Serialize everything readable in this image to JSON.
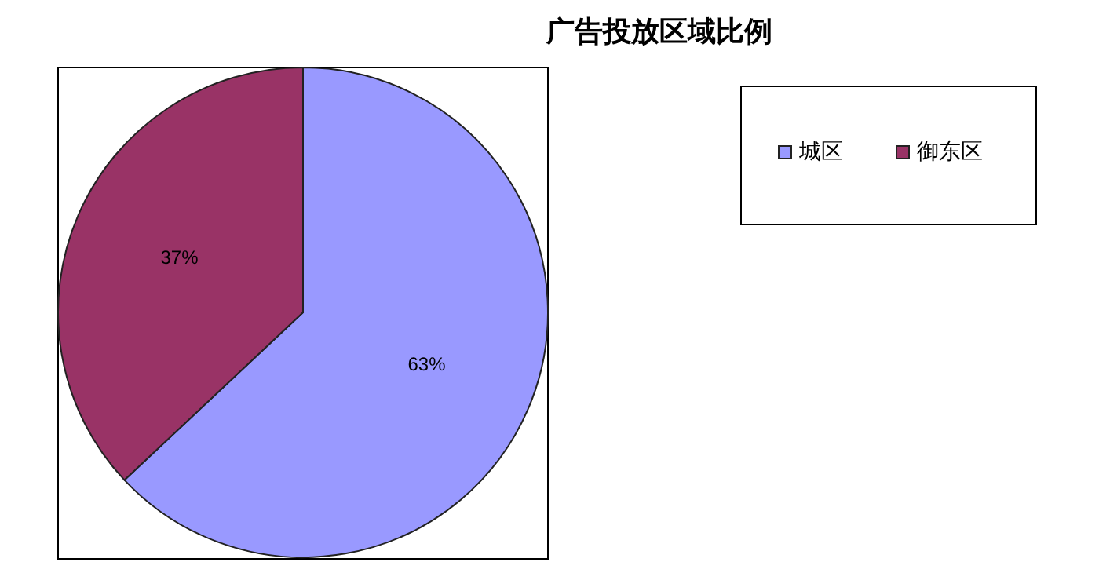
{
  "chart_data": {
    "type": "pie",
    "title": "广告投放区域比例",
    "categories": [
      "城区",
      "御东区"
    ],
    "values": [
      63,
      37
    ],
    "colors": [
      "#9999ff",
      "#993366"
    ],
    "value_labels": [
      "63%",
      "37%"
    ],
    "legend": "top right"
  }
}
